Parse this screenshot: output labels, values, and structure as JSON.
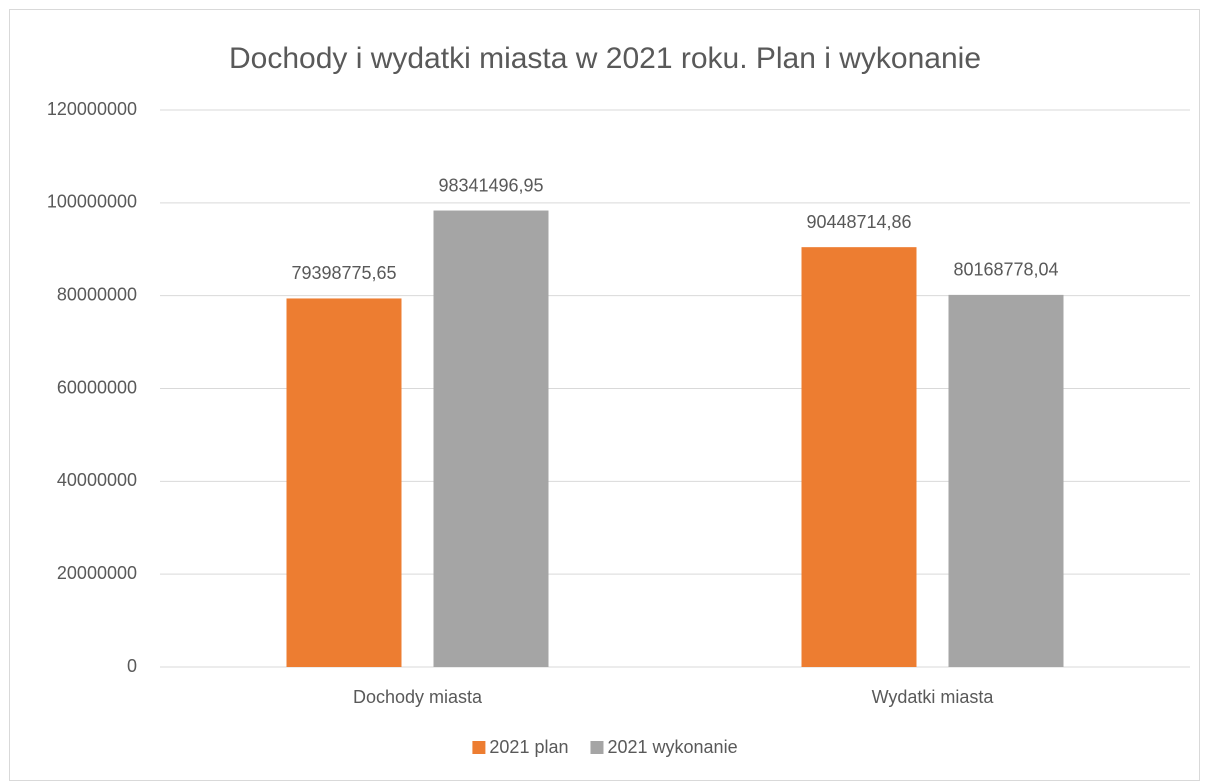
{
  "chart_data": {
    "type": "bar",
    "title": "Dochody i wydatki miasta w 2021 roku. Plan i wykonanie",
    "categories": [
      "Dochody miasta",
      "Wydatki miasta"
    ],
    "series": [
      {
        "name": "2021 plan",
        "color": "#ed7d31",
        "values": [
          79398775.65,
          90448714.86
        ],
        "value_labels": [
          "79398775,65",
          "90448714,86"
        ]
      },
      {
        "name": "2021 wykonanie",
        "color": "#a5a5a5",
        "values": [
          98341496.95,
          80168778.04
        ],
        "value_labels": [
          "98341496,95",
          "80168778,04"
        ]
      }
    ],
    "ylim": [
      0,
      120000000
    ],
    "yticks": [
      0,
      20000000,
      40000000,
      60000000,
      80000000,
      100000000,
      120000000
    ],
    "grid": true,
    "legend": "bottom"
  }
}
